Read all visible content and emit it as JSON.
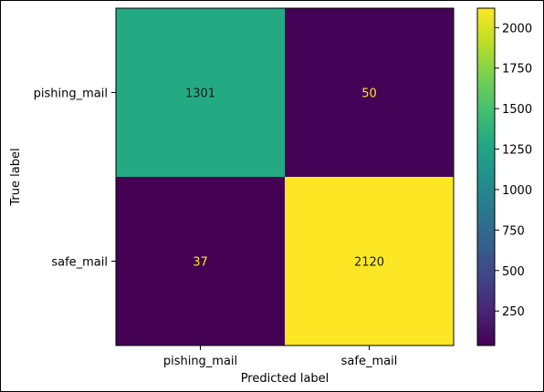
{
  "chart_data": {
    "type": "heatmap",
    "title": "",
    "xlabel": "Predicted label",
    "ylabel": "True label",
    "x_categories": [
      "pishing_mail",
      "safe_mail"
    ],
    "y_categories": [
      "pishing_mail",
      "safe_mail"
    ],
    "matrix": [
      [
        1301,
        50
      ],
      [
        37,
        2120
      ]
    ],
    "colormap": "viridis",
    "colorbar": {
      "vmin": 37,
      "vmax": 2120,
      "ticks": [
        250,
        500,
        750,
        1000,
        1250,
        1500,
        1750,
        2000
      ]
    },
    "cell_text_colors": {
      "dark_cell": "#fde725",
      "light_cell": "#1a1a1a"
    },
    "grid": false
  }
}
